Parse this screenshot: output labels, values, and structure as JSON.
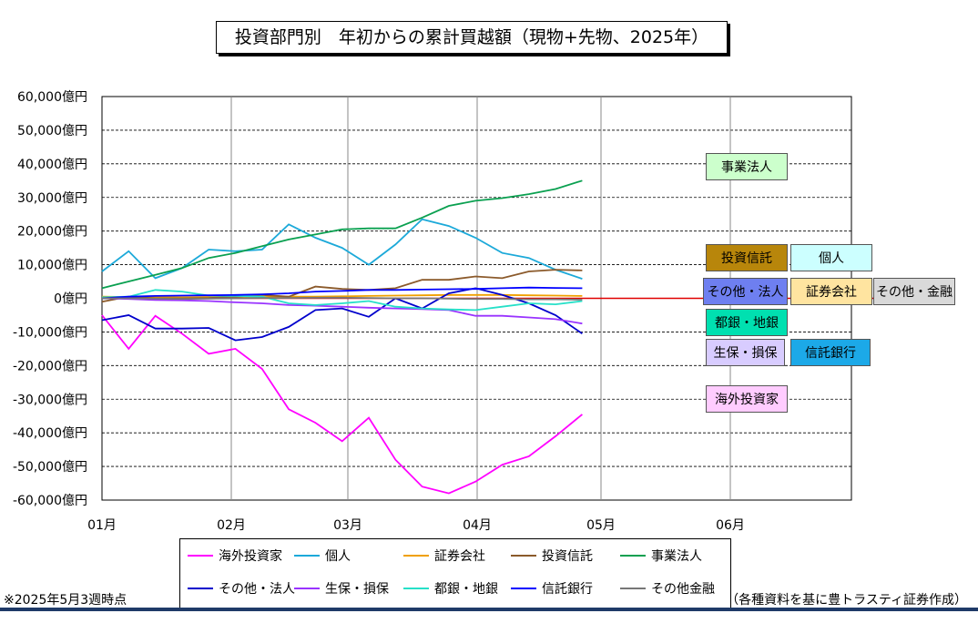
{
  "title": "投資部門別　年初からの累計買越額（現物+先物、2025年）",
  "footnote_left": "※2025年5月3週時点",
  "footnote_right": "（各種資料を基に豊トラスティ証券作成）",
  "colors": {
    "zero_line": "#e00000",
    "grid": "#000000"
  },
  "chart_data": {
    "type": "line",
    "x_ticks": [
      "01月",
      "02月",
      "03月",
      "04月",
      "05月",
      "06月"
    ],
    "y_ticks": [
      "60,000億円",
      "50,000億円",
      "40,000億円",
      "30,000億円",
      "20,000億円",
      "10,000億円",
      "0億円",
      "-10,000億円",
      "-20,000億円",
      "-30,000億円",
      "-40,000億円",
      "-50,000億円",
      "-60,000億円"
    ],
    "ylim": [
      -60000,
      60000
    ],
    "x_weeks": [
      1,
      1.5,
      2,
      2.5,
      3,
      3.5,
      4,
      4.5,
      5,
      5.5,
      6,
      6.5,
      7,
      7.5,
      8,
      8.5,
      9,
      9.5,
      10,
      10.5
    ],
    "series": [
      {
        "name": "海外投資家",
        "color": "#ff00ff",
        "values": [
          -5000,
          -15000,
          -5200,
          -10500,
          -16500,
          -15000,
          -21000,
          -33000,
          -37000,
          -42500,
          -35500,
          -48000,
          -56000,
          -58000,
          -54500,
          -49500,
          -47000,
          -41000,
          -34500,
          null
        ]
      },
      {
        "name": "個人",
        "color": "#1ca9d9",
        "values": [
          8000,
          14000,
          6000,
          9000,
          14500,
          14000,
          14500,
          22000,
          18000,
          15000,
          10000,
          16000,
          23500,
          21500,
          18000,
          13500,
          12000,
          8500,
          5800,
          null
        ]
      },
      {
        "name": "証券会社",
        "color": "#f0a000",
        "values": [
          500,
          400,
          300,
          300,
          400,
          300,
          400,
          500,
          500,
          600,
          700,
          800,
          900,
          1000,
          1000,
          1000,
          900,
          800,
          700,
          null
        ]
      },
      {
        "name": "投資信託",
        "color": "#8b5a2b",
        "values": [
          -1000,
          500,
          0,
          0,
          100,
          500,
          1000,
          500,
          3500,
          2800,
          2500,
          3000,
          5500,
          5500,
          6500,
          6000,
          8000,
          8500,
          8300,
          null
        ]
      },
      {
        "name": "事業法人",
        "color": "#0aa050",
        "values": [
          3000,
          5000,
          7000,
          9000,
          12000,
          13500,
          15500,
          17500,
          19000,
          20500,
          20800,
          20800,
          24000,
          27500,
          29000,
          29800,
          31000,
          32500,
          35000,
          null
        ]
      },
      {
        "name": "その他・法人",
        "color": "#0000cc",
        "values": [
          -6500,
          -5000,
          -9000,
          -9000,
          -8800,
          -12500,
          -11500,
          -8500,
          -3500,
          -3000,
          -5500,
          0,
          -3000,
          1500,
          3000,
          1000,
          -1500,
          -5000,
          -10500,
          null
        ]
      },
      {
        "name": "生保・損保",
        "color": "#9933ff",
        "values": [
          0,
          -200,
          -500,
          -600,
          -800,
          -1200,
          -1500,
          -2000,
          -2200,
          -2500,
          -2800,
          -3000,
          -3200,
          -3500,
          -5200,
          -5200,
          -5700,
          -6200,
          -7500,
          null
        ]
      },
      {
        "name": "都銀・地銀",
        "color": "#26e0c8",
        "values": [
          300,
          500,
          2500,
          2000,
          800,
          700,
          500,
          -1500,
          -2000,
          -1500,
          -800,
          -2500,
          -3000,
          -3300,
          -3500,
          -2500,
          -1500,
          -1800,
          -800,
          null
        ]
      },
      {
        "name": "信託銀行",
        "color": "#0000ff",
        "values": [
          0,
          500,
          700,
          800,
          900,
          1000,
          1200,
          1500,
          2000,
          2200,
          2500,
          2500,
          2600,
          2700,
          2800,
          3000,
          3200,
          3100,
          3000,
          null
        ]
      },
      {
        "name": "その他金融",
        "color": "#777777",
        "values": [
          0,
          0,
          -100,
          -200,
          -100,
          0,
          100,
          100,
          200,
          200,
          100,
          0,
          0,
          -100,
          -200,
          -200,
          -300,
          -300,
          -400,
          null
        ]
      }
    ]
  },
  "tags": [
    {
      "label": "事業法人",
      "bg": "#ccffcc"
    },
    {
      "label": "投資信託",
      "bg": "#b8860b"
    },
    {
      "label": "個人",
      "bg": "#ccffff"
    },
    {
      "label": "その他・法人",
      "bg": "#6e7ff0"
    },
    {
      "label": "証券会社",
      "bg": "#ffe4a0"
    },
    {
      "label": "その他・金融",
      "bg": "#d9d9d9"
    },
    {
      "label": "都銀・地銀",
      "bg": "#00e0b0"
    },
    {
      "label": "生保・損保",
      "bg": "#d8ccff"
    },
    {
      "label": "信託銀行",
      "bg": "#1ca9e8"
    },
    {
      "label": "海外投資家",
      "bg": "#ffccff"
    }
  ],
  "legend": [
    {
      "label": "海外投資家",
      "color": "#ff00ff"
    },
    {
      "label": "個人",
      "color": "#1ca9d9"
    },
    {
      "label": "証券会社",
      "color": "#f0a000"
    },
    {
      "label": "投資信託",
      "color": "#8b5a2b"
    },
    {
      "label": "事業法人",
      "color": "#0aa050"
    },
    {
      "label": "その他・法人",
      "color": "#0000cc"
    },
    {
      "label": "生保・損保",
      "color": "#9933ff"
    },
    {
      "label": "都銀・地銀",
      "color": "#26e0c8"
    },
    {
      "label": "信託銀行",
      "color": "#0000ff"
    },
    {
      "label": "その他金融",
      "color": "#777777"
    }
  ]
}
